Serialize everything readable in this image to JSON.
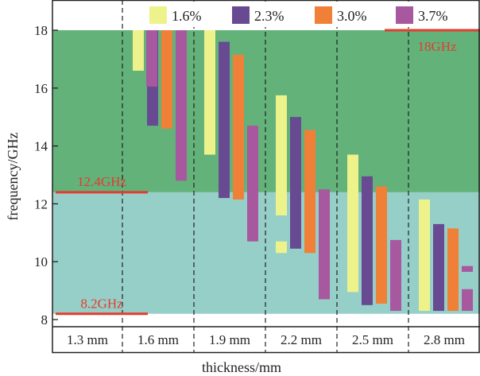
{
  "chart_data": {
    "type": "bar",
    "xlabel": "thickness/mm",
    "ylabel": "frequency/GHz",
    "ylim": [
      8,
      18
    ],
    "yticks": [
      8,
      10,
      12,
      14,
      16,
      18
    ],
    "categories": [
      "1.3 mm",
      "1.6 mm",
      "1.9 mm",
      "2.2 mm",
      "2.5 mm",
      "2.8 mm"
    ],
    "series": [
      {
        "name": "1.6%",
        "color": "#eef28a",
        "ranges": [
          [],
          [
            [
              16.6,
              18
            ]
          ],
          [
            [
              13.7,
              18
            ]
          ],
          [
            [
              11.6,
              15.75
            ],
            [
              10.3,
              10.7
            ]
          ],
          [
            [
              8.95,
              13.7
            ]
          ],
          [
            [
              8.3,
              12.15
            ]
          ]
        ]
      },
      {
        "name": "2.3%",
        "color": "#684a92",
        "ranges": [
          [],
          [
            [
              14.7,
              18
            ]
          ],
          [
            [
              12.2,
              17.6
            ]
          ],
          [
            [
              10.45,
              15
            ]
          ],
          [
            [
              8.5,
              12.95
            ]
          ],
          [
            [
              8.3,
              11.3
            ]
          ]
        ]
      },
      {
        "name": "3.0%",
        "color": "#f08038",
        "ranges": [
          [],
          [
            [
              14.6,
              18
            ]
          ],
          [
            [
              12.15,
              17.15
            ]
          ],
          [
            [
              10.3,
              14.55
            ]
          ],
          [
            [
              8.55,
              12.6
            ]
          ],
          [
            [
              8.3,
              11.15
            ]
          ]
        ]
      },
      {
        "name": "3.7%",
        "color": "#a8589e",
        "ranges": [
          [
            [
              16.05,
              18
            ]
          ],
          [
            [
              12.8,
              18
            ]
          ],
          [
            [
              10.7,
              14.7
            ]
          ],
          [
            [
              8.7,
              12.5
            ]
          ],
          [
            [
              8.3,
              10.75
            ]
          ],
          [
            [
              9.65,
              9.85
            ],
            [
              8.3,
              9.05
            ]
          ]
        ]
      }
    ],
    "bands": [
      {
        "from": 8.2,
        "to": 12.4,
        "color": "#96cfc8"
      },
      {
        "from": 12.4,
        "to": 18,
        "color": "#62b27a"
      }
    ],
    "annotations": [
      {
        "text": "18GHz",
        "value": 18,
        "color": "#e53b2e"
      },
      {
        "text": "12.4GHz",
        "value": 12.4,
        "color": "#e53b2e"
      },
      {
        "text": "8.2GHz",
        "value": 8.2,
        "color": "#e53b2e"
      }
    ],
    "grid": false,
    "legend_position": "top"
  }
}
